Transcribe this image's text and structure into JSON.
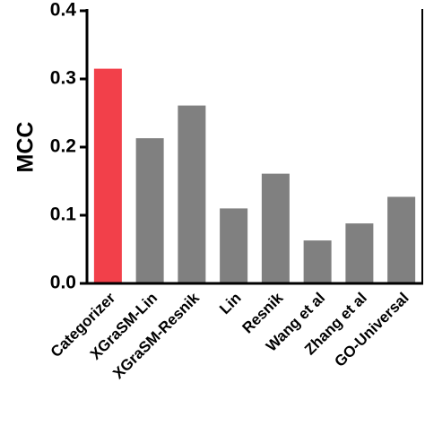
{
  "chart_data": {
    "type": "bar",
    "y_label": "MCC",
    "categories": [
      "Categorizer",
      "XGraSM-Lin",
      "XGraSM-Resnik",
      "Lin",
      "Resnik",
      "Wang et al",
      "Zhang et al",
      "GO-Universal"
    ],
    "values": [
      0.315,
      0.213,
      0.261,
      0.11,
      0.161,
      0.063,
      0.088,
      0.127
    ],
    "colors": [
      "#f2404a",
      "#808080",
      "#808080",
      "#808080",
      "#808080",
      "#808080",
      "#808080",
      "#808080"
    ],
    "ylim": [
      0,
      0.4
    ],
    "yticks": [
      {
        "value": 0,
        "label": "0.0"
      },
      0.1,
      0.2,
      0.3,
      0.4
    ]
  }
}
